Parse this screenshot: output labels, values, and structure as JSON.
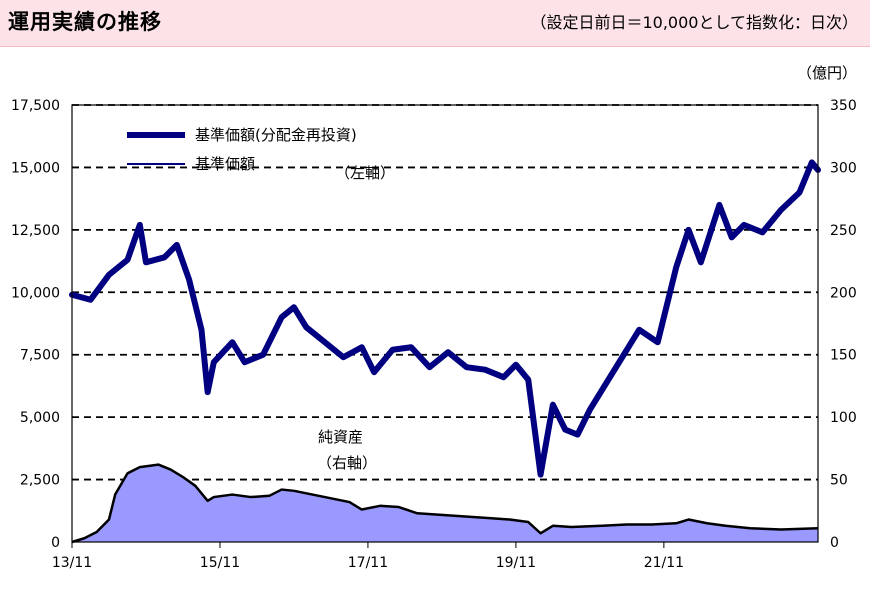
{
  "header": {
    "title": "運用実績の推移",
    "note": "（設定日前日＝10,000として指数化：日次）"
  },
  "right_axis_unit": "（億円）",
  "legend": {
    "label_reinvested": "基準価額(分配金再投資)",
    "label_nav": "基準価額"
  },
  "annotations": {
    "left_axis_note": "（左軸）",
    "net_assets_label": "純資産",
    "right_axis_note": "（右軸）"
  },
  "colors": {
    "line": "#000080",
    "area_fill": "#9999ff",
    "area_outline": "#000000",
    "header_bg": "#fde3e8"
  },
  "chart_data": {
    "type": "line",
    "x_tick_labels": [
      "13/11",
      "15/11",
      "17/11",
      "19/11",
      "21/11"
    ],
    "y_left": {
      "range": [
        0,
        17500
      ],
      "ticks": [
        "0",
        "2,500",
        "5,000",
        "7,500",
        "10,000",
        "12,500",
        "15,000",
        "17,500"
      ]
    },
    "y_right": {
      "range": [
        0,
        350
      ],
      "ticks": [
        "0",
        "50",
        "100",
        "150",
        "200",
        "250",
        "300",
        "350"
      ]
    },
    "grid": "horizontal dashed",
    "series": [
      {
        "name": "基準価額(分配金再投資)",
        "axis": "left",
        "points": [
          [
            "13/11",
            9900
          ],
          [
            "14/02",
            9700
          ],
          [
            "14/05",
            10700
          ],
          [
            "14/08",
            11300
          ],
          [
            "14/10",
            12700
          ],
          [
            "14/11",
            11200
          ],
          [
            "15/02",
            11400
          ],
          [
            "15/04",
            11900
          ],
          [
            "15/06",
            10500
          ],
          [
            "15/08",
            8500
          ],
          [
            "15/09",
            6000
          ],
          [
            "15/10",
            7200
          ],
          [
            "16/01",
            8000
          ],
          [
            "16/03",
            7200
          ],
          [
            "16/06",
            7500
          ],
          [
            "16/09",
            9000
          ],
          [
            "16/11",
            9400
          ],
          [
            "17/01",
            8600
          ],
          [
            "17/04",
            8000
          ],
          [
            "17/07",
            7400
          ],
          [
            "17/10",
            7800
          ],
          [
            "17/12",
            6800
          ],
          [
            "18/03",
            7700
          ],
          [
            "18/06",
            7800
          ],
          [
            "18/09",
            7000
          ],
          [
            "18/12",
            7600
          ],
          [
            "19/03",
            7000
          ],
          [
            "19/06",
            6900
          ],
          [
            "19/09",
            6600
          ],
          [
            "19/11",
            7100
          ],
          [
            "20/01",
            6500
          ],
          [
            "20/03",
            2700
          ],
          [
            "20/05",
            5500
          ],
          [
            "20/07",
            4500
          ],
          [
            "20/09",
            4300
          ],
          [
            "20/11",
            5300
          ],
          [
            "21/02",
            6500
          ],
          [
            "21/04",
            7300
          ],
          [
            "21/07",
            8500
          ],
          [
            "21/10",
            8000
          ],
          [
            "22/01",
            11000
          ],
          [
            "22/03",
            12500
          ],
          [
            "22/05",
            11200
          ],
          [
            "22/08",
            13500
          ],
          [
            "22/10",
            12200
          ],
          [
            "22/12",
            12700
          ],
          [
            "23/03",
            12400
          ],
          [
            "23/06",
            13300
          ],
          [
            "23/09",
            14000
          ],
          [
            "23/11",
            15200
          ],
          [
            "23/12",
            14900
          ]
        ]
      },
      {
        "name": "基準価額",
        "axis": "left",
        "points": [
          [
            "13/11",
            9900
          ],
          [
            "14/02",
            9700
          ],
          [
            "14/05",
            10700
          ],
          [
            "14/08",
            11300
          ],
          [
            "14/10",
            12700
          ],
          [
            "14/11",
            11200
          ],
          [
            "15/02",
            11400
          ],
          [
            "15/04",
            11900
          ],
          [
            "15/06",
            10500
          ],
          [
            "15/08",
            8500
          ],
          [
            "15/09",
            6000
          ],
          [
            "15/10",
            7200
          ],
          [
            "16/01",
            8000
          ],
          [
            "16/03",
            7200
          ],
          [
            "16/06",
            7500
          ],
          [
            "16/09",
            9000
          ],
          [
            "16/11",
            9400
          ],
          [
            "17/01",
            8600
          ],
          [
            "17/04",
            8000
          ],
          [
            "17/07",
            7400
          ],
          [
            "17/10",
            7800
          ],
          [
            "17/12",
            6800
          ],
          [
            "18/03",
            7700
          ],
          [
            "18/06",
            7800
          ],
          [
            "18/09",
            7000
          ],
          [
            "18/12",
            7600
          ],
          [
            "19/03",
            7000
          ],
          [
            "19/06",
            6900
          ],
          [
            "19/09",
            6600
          ],
          [
            "19/11",
            7100
          ],
          [
            "20/01",
            6500
          ],
          [
            "20/03",
            2700
          ],
          [
            "20/05",
            5500
          ],
          [
            "20/07",
            4500
          ],
          [
            "20/09",
            4300
          ],
          [
            "20/11",
            5300
          ],
          [
            "21/02",
            6500
          ],
          [
            "21/04",
            7300
          ],
          [
            "21/07",
            8500
          ],
          [
            "21/10",
            8000
          ],
          [
            "22/01",
            11000
          ],
          [
            "22/03",
            12500
          ],
          [
            "22/05",
            11200
          ],
          [
            "22/08",
            13500
          ],
          [
            "22/10",
            12200
          ],
          [
            "22/12",
            12700
          ],
          [
            "23/03",
            12400
          ],
          [
            "23/06",
            13300
          ],
          [
            "23/09",
            14000
          ],
          [
            "23/11",
            15200
          ],
          [
            "23/12",
            14900
          ]
        ]
      },
      {
        "name": "純資産",
        "axis": "right",
        "type": "area",
        "points": [
          [
            "13/11",
            0
          ],
          [
            "14/01",
            3
          ],
          [
            "14/03",
            8
          ],
          [
            "14/05",
            18
          ],
          [
            "14/06",
            38
          ],
          [
            "14/08",
            55
          ],
          [
            "14/10",
            60
          ],
          [
            "15/01",
            62
          ],
          [
            "15/03",
            58
          ],
          [
            "15/05",
            52
          ],
          [
            "15/07",
            45
          ],
          [
            "15/09",
            33
          ],
          [
            "15/10",
            36
          ],
          [
            "16/01",
            38
          ],
          [
            "16/04",
            36
          ],
          [
            "16/07",
            37
          ],
          [
            "16/09",
            42
          ],
          [
            "16/11",
            41
          ],
          [
            "17/02",
            38
          ],
          [
            "17/05",
            35
          ],
          [
            "17/08",
            32
          ],
          [
            "17/10",
            26
          ],
          [
            "18/01",
            29
          ],
          [
            "18/04",
            28
          ],
          [
            "18/07",
            23
          ],
          [
            "18/10",
            22
          ],
          [
            "19/01",
            21
          ],
          [
            "19/04",
            20
          ],
          [
            "19/07",
            19
          ],
          [
            "19/10",
            18
          ],
          [
            "20/01",
            16
          ],
          [
            "20/03",
            7
          ],
          [
            "20/05",
            13
          ],
          [
            "20/08",
            12
          ],
          [
            "21/01",
            13
          ],
          [
            "21/05",
            14
          ],
          [
            "21/09",
            14
          ],
          [
            "22/01",
            15
          ],
          [
            "22/03",
            18
          ],
          [
            "22/06",
            15
          ],
          [
            "22/09",
            13
          ],
          [
            "23/01",
            11
          ],
          [
            "23/06",
            10
          ],
          [
            "23/12",
            11
          ]
        ]
      }
    ]
  }
}
